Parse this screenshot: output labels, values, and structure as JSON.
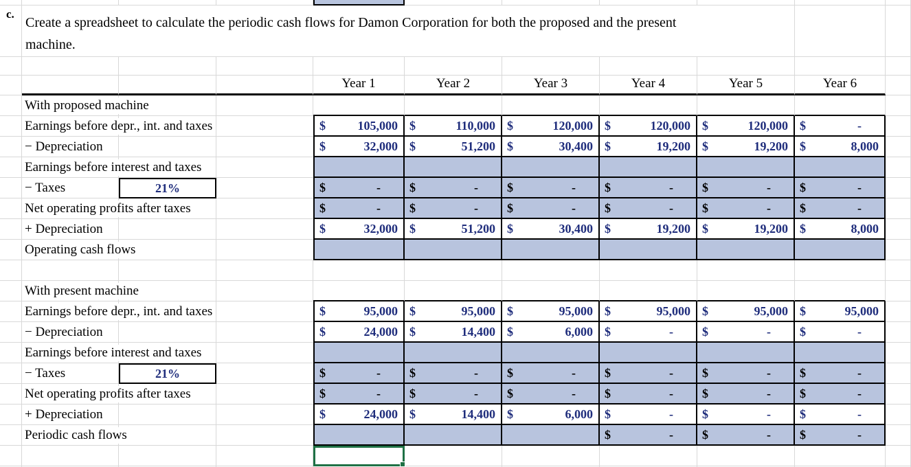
{
  "item_label": "c.",
  "title_lines": [
    "Create a spreadsheet to calculate the periodic cash flows for Damon Corporation for both the proposed and the present",
    "machine."
  ],
  "currency_symbol": "$",
  "tax_rate": "21%",
  "year_headers": [
    "Year 1",
    "Year 2",
    "Year 3",
    "Year 4",
    "Year 5",
    "Year 6"
  ],
  "colors": {
    "value_text": "#1f2d7c",
    "zero_text": "#000000",
    "cell_fill": "#b8c4de",
    "grid_line": "#d8d8d8",
    "table_border": "#000000",
    "selection": "#1f7145"
  },
  "sections": [
    {
      "name": "With proposed machine",
      "rows": [
        {
          "label": "Earnings before depr., int. and taxes",
          "fill": "white",
          "values": [
            "105,000",
            "110,000",
            "120,000",
            "120,000",
            "120,000",
            "-"
          ]
        },
        {
          "label": "− Depreciation",
          "fill": "white",
          "values": [
            "32,000",
            "51,200",
            "30,400",
            "19,200",
            "19,200",
            "8,000"
          ]
        },
        {
          "label": "Earnings before interest and taxes",
          "fill": "blue",
          "values": null
        },
        {
          "label": "− Taxes",
          "tax_box": true,
          "fill": "blue",
          "values": [
            "-",
            "-",
            "-",
            "-",
            "-",
            "-"
          ]
        },
        {
          "label": "Net operating profits after taxes",
          "fill": "blue",
          "values": [
            "-",
            "-",
            "-",
            "-",
            "-",
            "-"
          ]
        },
        {
          "label": "+ Depreciation",
          "fill": "white",
          "values": [
            "32,000",
            "51,200",
            "30,400",
            "19,200",
            "19,200",
            "8,000"
          ]
        },
        {
          "label": "Operating cash flows",
          "fill": "blue",
          "values": null
        }
      ]
    },
    {
      "name": "With present machine",
      "rows": [
        {
          "label": "Earnings before depr., int. and taxes",
          "fill": "white",
          "values": [
            "95,000",
            "95,000",
            "95,000",
            "95,000",
            "95,000",
            "95,000"
          ]
        },
        {
          "label": "− Depreciation",
          "fill": "white",
          "values": [
            "24,000",
            "14,400",
            "6,000",
            "-",
            "-",
            "-"
          ]
        },
        {
          "label": "Earnings before interest and taxes",
          "fill": "blue",
          "values": null
        },
        {
          "label": "− Taxes",
          "tax_box": true,
          "fill": "blue",
          "values": [
            "-",
            "-",
            "-",
            "-",
            "-",
            "-"
          ]
        },
        {
          "label": "Net operating profits after taxes",
          "fill": "blue",
          "values": [
            "-",
            "-",
            "-",
            "-",
            "-",
            "-"
          ]
        },
        {
          "label": "+ Depreciation",
          "fill": "white",
          "values": [
            "24,000",
            "14,400",
            "6,000",
            "-",
            "-",
            "-"
          ]
        },
        {
          "label": "Periodic cash flows",
          "fill": "blue",
          "values": [
            "",
            "",
            "",
            "-",
            "-",
            "-"
          ]
        }
      ]
    }
  ]
}
